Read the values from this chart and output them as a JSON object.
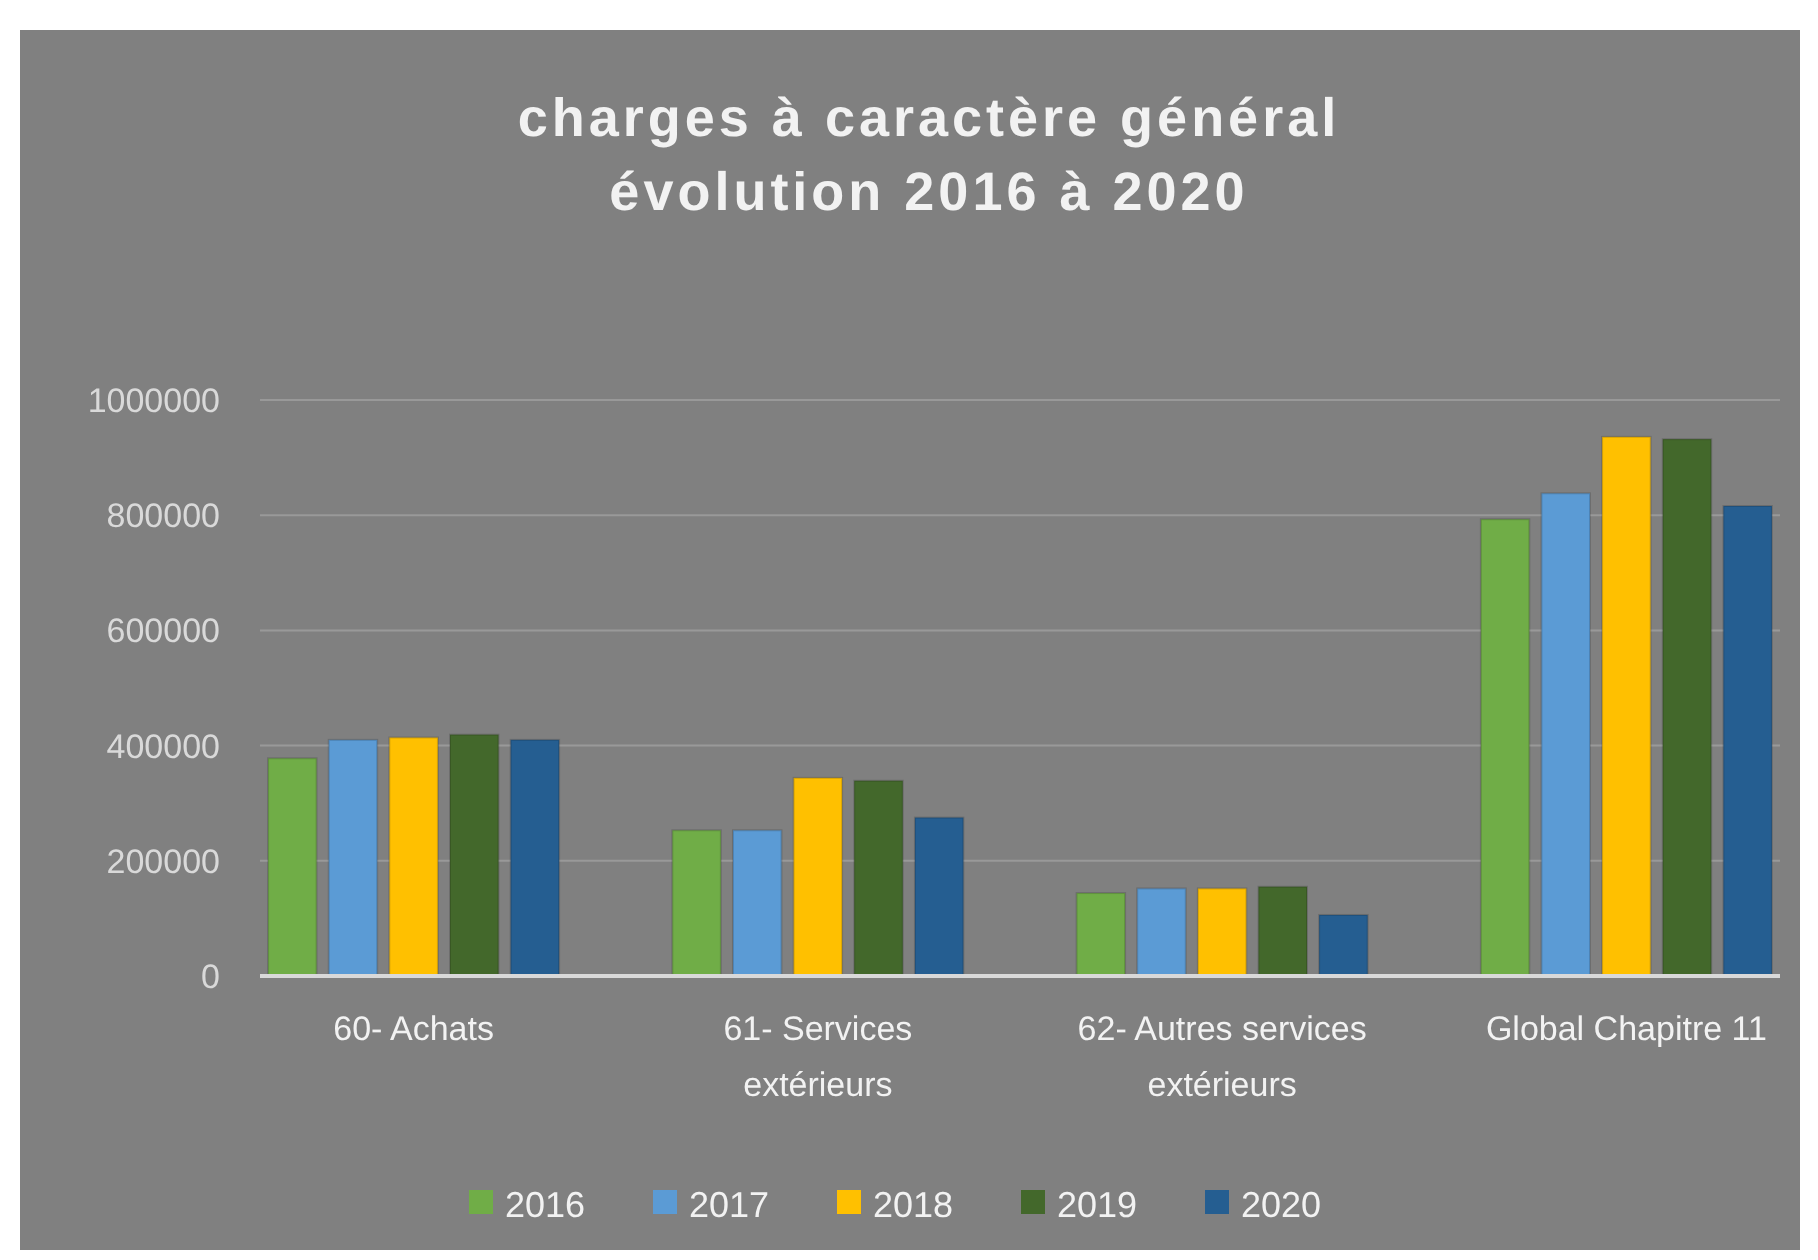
{
  "chart_data": {
    "type": "bar",
    "title": "charges à caractère général\névolution 2016 à 2020",
    "categories": [
      "60- Achats",
      "61- Services extérieurs",
      "62- Autres services extérieurs",
      "Global Chapitre 11"
    ],
    "series": [
      {
        "name": "2016",
        "color": "#70ad47",
        "values": [
          378000,
          253000,
          144000,
          793000
        ]
      },
      {
        "name": "2017",
        "color": "#5b9bd5",
        "values": [
          410000,
          253000,
          152000,
          838000
        ]
      },
      {
        "name": "2018",
        "color": "#ffc000",
        "values": [
          414000,
          344000,
          152000,
          936000
        ]
      },
      {
        "name": "2019",
        "color": "#43682b",
        "values": [
          419000,
          339000,
          155000,
          932000
        ]
      },
      {
        "name": "2020",
        "color": "#255e91",
        "values": [
          410000,
          275000,
          106000,
          816000
        ]
      }
    ],
    "ylim": [
      0,
      1000000
    ],
    "yticks": [
      0,
      200000,
      400000,
      600000,
      800000,
      1000000
    ],
    "grid": "y",
    "legend": "bottom"
  }
}
